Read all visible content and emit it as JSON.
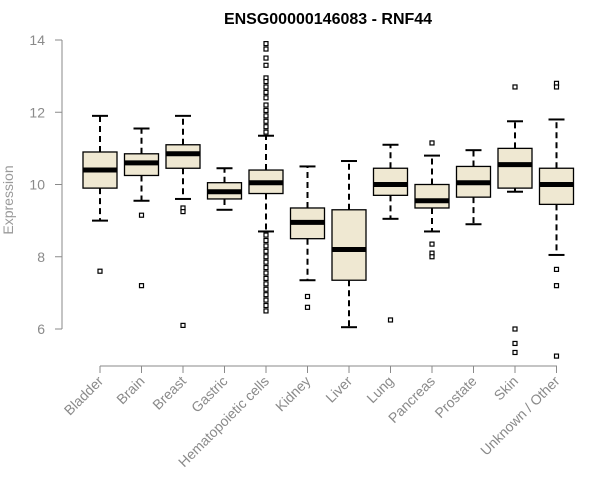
{
  "chart_data": {
    "type": "boxplot",
    "title": "ENSG00000146083 - RNF44",
    "xlabel": "",
    "ylabel": "Expression",
    "ylim": [
      5,
      14
    ],
    "yticks": [
      6,
      8,
      10,
      12,
      14
    ],
    "categories": [
      "Bladder",
      "Brain",
      "Breast",
      "Gastric",
      "Hematopoietic cells",
      "Kidney",
      "Liver",
      "Lung",
      "Pancreas",
      "Prostate",
      "Skin",
      "Unknown / Other"
    ],
    "box_color": "#efe8d2",
    "boxes": [
      {
        "category": "Bladder",
        "whisker_low": 9.0,
        "q1": 9.9,
        "median": 10.4,
        "q3": 10.9,
        "whisker_high": 11.9,
        "outliers": [
          7.6
        ]
      },
      {
        "category": "Brain",
        "whisker_low": 9.55,
        "q1": 10.25,
        "median": 10.6,
        "q3": 10.85,
        "whisker_high": 11.55,
        "outliers": [
          9.15,
          7.2
        ]
      },
      {
        "category": "Breast",
        "whisker_low": 9.6,
        "q1": 10.45,
        "median": 10.85,
        "q3": 11.1,
        "whisker_high": 11.9,
        "outliers": [
          9.35,
          9.25,
          6.1
        ]
      },
      {
        "category": "Gastric",
        "whisker_low": 9.3,
        "q1": 9.6,
        "median": 9.8,
        "q3": 10.05,
        "whisker_high": 10.45,
        "outliers": []
      },
      {
        "category": "Hematopoietic cells",
        "whisker_low": 8.7,
        "q1": 9.75,
        "median": 10.05,
        "q3": 10.4,
        "whisker_high": 11.35,
        "outliers": [
          13.9,
          13.75,
          13.5,
          13.3,
          12.95,
          12.85,
          12.7,
          12.55,
          12.4,
          12.2,
          12.05,
          11.9,
          11.75,
          11.6,
          11.45,
          8.6,
          8.45,
          8.3,
          8.15,
          8.0,
          7.85,
          7.7,
          7.55,
          7.4,
          7.25,
          7.1,
          6.95,
          6.8,
          6.65,
          6.5
        ]
      },
      {
        "category": "Kidney",
        "whisker_low": 7.35,
        "q1": 8.5,
        "median": 8.95,
        "q3": 9.35,
        "whisker_high": 10.5,
        "outliers": [
          6.9,
          6.6
        ]
      },
      {
        "category": "Liver",
        "whisker_low": 6.05,
        "q1": 7.35,
        "median": 8.2,
        "q3": 9.3,
        "whisker_high": 10.65,
        "outliers": []
      },
      {
        "category": "Lung",
        "whisker_low": 9.05,
        "q1": 9.7,
        "median": 10.0,
        "q3": 10.45,
        "whisker_high": 11.1,
        "outliers": [
          6.25
        ]
      },
      {
        "category": "Pancreas",
        "whisker_low": 8.7,
        "q1": 9.35,
        "median": 9.55,
        "q3": 10.0,
        "whisker_high": 10.8,
        "outliers": [
          11.15,
          8.35,
          8.1,
          8.0
        ]
      },
      {
        "category": "Prostate",
        "whisker_low": 8.9,
        "q1": 9.65,
        "median": 10.05,
        "q3": 10.5,
        "whisker_high": 10.95,
        "outliers": []
      },
      {
        "category": "Skin",
        "whisker_low": 9.8,
        "q1": 9.9,
        "median": 10.55,
        "q3": 11.0,
        "whisker_high": 11.75,
        "outliers": [
          12.7,
          6.0,
          5.6,
          5.35
        ]
      },
      {
        "category": "Unknown / Other",
        "whisker_low": 8.05,
        "q1": 9.45,
        "median": 10.0,
        "q3": 10.45,
        "whisker_high": 11.8,
        "outliers": [
          12.8,
          12.7,
          7.65,
          7.2,
          5.25
        ]
      }
    ]
  }
}
